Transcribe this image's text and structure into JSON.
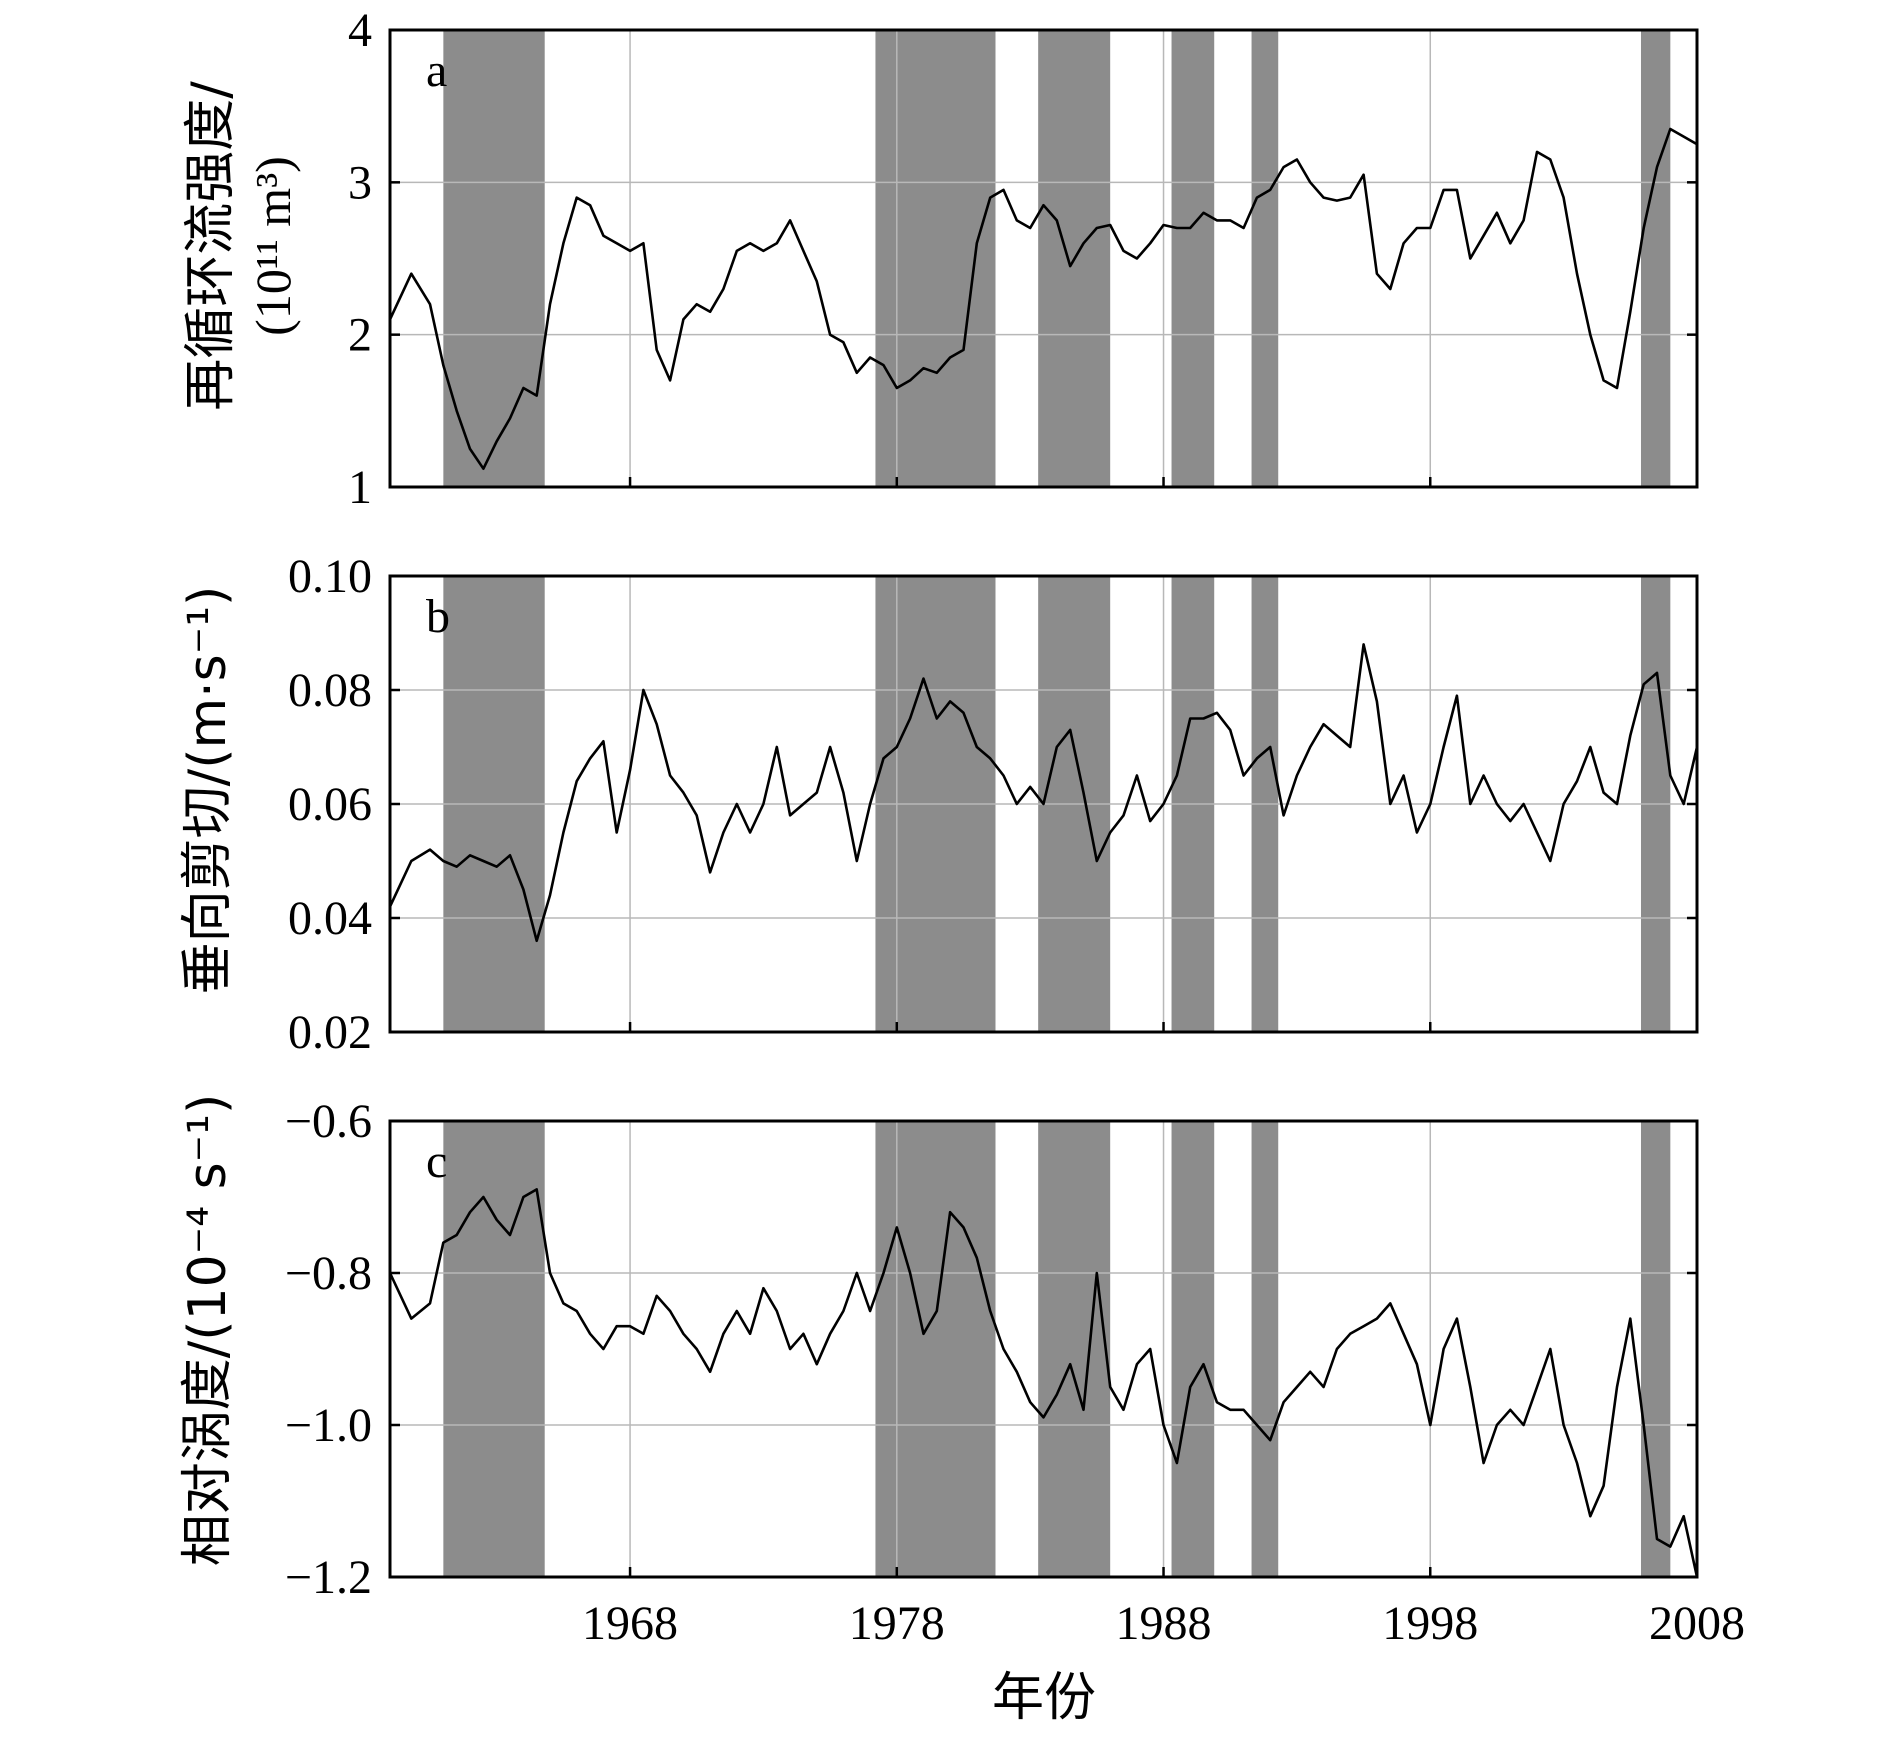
{
  "xlabel": "年份",
  "shaded_periods": [
    [
      1961.0,
      1964.8
    ],
    [
      1977.2,
      1981.7
    ],
    [
      1983.3,
      1986.0
    ],
    [
      1988.3,
      1989.9
    ],
    [
      1991.3,
      1992.3
    ],
    [
      2005.9,
      2007.0
    ]
  ],
  "chart_data": [
    {
      "type": "line",
      "panel": "a",
      "ylabel": "再循环流强度/",
      "yunit": "(10¹¹ m³)",
      "ylim": [
        1,
        4
      ],
      "yticks": [
        "1",
        "2",
        "3",
        "4"
      ],
      "xlim": [
        1959,
        2008
      ],
      "xticks": [
        "1968",
        "1978",
        "1988",
        "1998",
        "2008"
      ],
      "grid": true,
      "x": [
        1959.0,
        1959.8,
        1960.5,
        1961.0,
        1961.5,
        1962.0,
        1962.5,
        1963.0,
        1963.5,
        1964.0,
        1964.5,
        1965.0,
        1965.5,
        1966.0,
        1966.5,
        1967.0,
        1967.5,
        1968.0,
        1968.5,
        1969.0,
        1969.5,
        1970.0,
        1970.5,
        1971.0,
        1971.5,
        1972.0,
        1972.5,
        1973.0,
        1973.5,
        1974.0,
        1974.5,
        1975.0,
        1975.5,
        1976.0,
        1976.5,
        1977.0,
        1977.5,
        1978.0,
        1978.5,
        1979.0,
        1979.5,
        1980.0,
        1980.5,
        1981.0,
        1981.5,
        1982.0,
        1982.5,
        1983.0,
        1983.5,
        1984.0,
        1984.5,
        1985.0,
        1985.5,
        1986.0,
        1986.5,
        1987.0,
        1987.5,
        1988.0,
        1988.5,
        1989.0,
        1989.5,
        1990.0,
        1990.5,
        1991.0,
        1991.5,
        1992.0,
        1992.5,
        1993.0,
        1993.5,
        1994.0,
        1994.5,
        1995.0,
        1995.5,
        1996.0,
        1996.5,
        1997.0,
        1997.5,
        1998.0,
        1998.5,
        1999.0,
        1999.5,
        2000.0,
        2000.5,
        2001.0,
        2001.5,
        2002.0,
        2002.5,
        2003.0,
        2003.5,
        2004.0,
        2004.5,
        2005.0,
        2005.5,
        2006.0,
        2006.5,
        2007.0,
        2007.5,
        2008.0
      ],
      "y": [
        2.1,
        2.4,
        2.2,
        1.8,
        1.5,
        1.25,
        1.12,
        1.3,
        1.45,
        1.65,
        1.6,
        2.2,
        2.6,
        2.9,
        2.85,
        2.65,
        2.6,
        2.55,
        2.6,
        1.9,
        1.7,
        2.1,
        2.2,
        2.15,
        2.3,
        2.55,
        2.6,
        2.55,
        2.6,
        2.75,
        2.55,
        2.35,
        2.0,
        1.95,
        1.75,
        1.85,
        1.8,
        1.65,
        1.7,
        1.78,
        1.75,
        1.85,
        1.9,
        2.6,
        2.9,
        2.95,
        2.75,
        2.7,
        2.85,
        2.75,
        2.45,
        2.6,
        2.7,
        2.72,
        2.55,
        2.5,
        2.6,
        2.72,
        2.7,
        2.7,
        2.8,
        2.75,
        2.75,
        2.7,
        2.9,
        2.95,
        3.1,
        3.15,
        3.0,
        2.9,
        2.88,
        2.9,
        3.05,
        2.4,
        2.3,
        2.6,
        2.7,
        2.7,
        2.95,
        2.95,
        2.5,
        2.65,
        2.8,
        2.6,
        2.75,
        3.2,
        3.15,
        2.9,
        2.4,
        2.0,
        1.7,
        1.65,
        2.15,
        2.7,
        3.1,
        3.35,
        3.3,
        3.25
      ]
    },
    {
      "type": "line",
      "panel": "b",
      "ylabel": "垂向剪切/(m·s⁻¹)",
      "ylim": [
        0.02,
        0.1
      ],
      "yticks": [
        "0.02",
        "0.04",
        "0.06",
        "0.08",
        "0.10"
      ],
      "xlim": [
        1959,
        2008
      ],
      "grid": true,
      "x": [
        1959.0,
        1959.8,
        1960.5,
        1961.0,
        1961.5,
        1962.0,
        1962.5,
        1963.0,
        1963.5,
        1964.0,
        1964.5,
        1965.0,
        1965.5,
        1966.0,
        1966.5,
        1967.0,
        1967.5,
        1968.0,
        1968.5,
        1969.0,
        1969.5,
        1970.0,
        1970.5,
        1971.0,
        1971.5,
        1972.0,
        1972.5,
        1973.0,
        1973.5,
        1974.0,
        1974.5,
        1975.0,
        1975.5,
        1976.0,
        1976.5,
        1977.0,
        1977.5,
        1978.0,
        1978.5,
        1979.0,
        1979.5,
        1980.0,
        1980.5,
        1981.0,
        1981.5,
        1982.0,
        1982.5,
        1983.0,
        1983.5,
        1984.0,
        1984.5,
        1985.0,
        1985.5,
        1986.0,
        1986.5,
        1987.0,
        1987.5,
        1988.0,
        1988.5,
        1989.0,
        1989.5,
        1990.0,
        1990.5,
        1991.0,
        1991.5,
        1992.0,
        1992.5,
        1993.0,
        1993.5,
        1994.0,
        1994.5,
        1995.0,
        1995.5,
        1996.0,
        1996.5,
        1997.0,
        1997.5,
        1998.0,
        1998.5,
        1999.0,
        1999.5,
        2000.0,
        2000.5,
        2001.0,
        2001.5,
        2002.0,
        2002.5,
        2003.0,
        2003.5,
        2004.0,
        2004.5,
        2005.0,
        2005.5,
        2006.0,
        2006.5,
        2007.0,
        2007.5,
        2008.0
      ],
      "y": [
        0.042,
        0.05,
        0.052,
        0.05,
        0.049,
        0.051,
        0.05,
        0.049,
        0.051,
        0.045,
        0.036,
        0.044,
        0.055,
        0.064,
        0.068,
        0.071,
        0.055,
        0.066,
        0.08,
        0.074,
        0.065,
        0.062,
        0.058,
        0.048,
        0.055,
        0.06,
        0.055,
        0.06,
        0.07,
        0.058,
        0.06,
        0.062,
        0.07,
        0.062,
        0.05,
        0.06,
        0.068,
        0.07,
        0.075,
        0.082,
        0.075,
        0.078,
        0.076,
        0.07,
        0.068,
        0.065,
        0.06,
        0.063,
        0.06,
        0.07,
        0.073,
        0.062,
        0.05,
        0.055,
        0.058,
        0.065,
        0.057,
        0.06,
        0.065,
        0.075,
        0.075,
        0.076,
        0.073,
        0.065,
        0.068,
        0.07,
        0.058,
        0.065,
        0.07,
        0.074,
        0.072,
        0.07,
        0.088,
        0.078,
        0.06,
        0.065,
        0.055,
        0.06,
        0.07,
        0.079,
        0.06,
        0.065,
        0.06,
        0.057,
        0.06,
        0.055,
        0.05,
        0.06,
        0.064,
        0.07,
        0.062,
        0.06,
        0.072,
        0.081,
        0.083,
        0.065,
        0.06,
        0.07
      ]
    },
    {
      "type": "line",
      "panel": "c",
      "ylabel": "相对涡度/(10⁻⁴ s⁻¹)",
      "ylim": [
        -1.2,
        -0.6
      ],
      "yticks": [
        "−1.2",
        "−1.0",
        "−0.8",
        "−0.6"
      ],
      "xlim": [
        1959,
        2008
      ],
      "grid": true,
      "x": [
        1959.0,
        1959.8,
        1960.5,
        1961.0,
        1961.5,
        1962.0,
        1962.5,
        1963.0,
        1963.5,
        1964.0,
        1964.5,
        1965.0,
        1965.5,
        1966.0,
        1966.5,
        1967.0,
        1967.5,
        1968.0,
        1968.5,
        1969.0,
        1969.5,
        1970.0,
        1970.5,
        1971.0,
        1971.5,
        1972.0,
        1972.5,
        1973.0,
        1973.5,
        1974.0,
        1974.5,
        1975.0,
        1975.5,
        1976.0,
        1976.5,
        1977.0,
        1977.5,
        1978.0,
        1978.5,
        1979.0,
        1979.5,
        1980.0,
        1980.5,
        1981.0,
        1981.5,
        1982.0,
        1982.5,
        1983.0,
        1983.5,
        1984.0,
        1984.5,
        1985.0,
        1985.5,
        1986.0,
        1986.5,
        1987.0,
        1987.5,
        1988.0,
        1988.5,
        1989.0,
        1989.5,
        1990.0,
        1990.5,
        1991.0,
        1991.5,
        1992.0,
        1992.5,
        1993.0,
        1993.5,
        1994.0,
        1994.5,
        1995.0,
        1995.5,
        1996.0,
        1996.5,
        1997.0,
        1997.5,
        1998.0,
        1998.5,
        1999.0,
        1999.5,
        2000.0,
        2000.5,
        2001.0,
        2001.5,
        2002.0,
        2002.5,
        2003.0,
        2003.5,
        2004.0,
        2004.5,
        2005.0,
        2005.5,
        2006.0,
        2006.5,
        2007.0,
        2007.5,
        2008.0
      ],
      "y": [
        -0.8,
        -0.86,
        -0.84,
        -0.76,
        -0.75,
        -0.72,
        -0.7,
        -0.73,
        -0.75,
        -0.7,
        -0.69,
        -0.8,
        -0.84,
        -0.85,
        -0.88,
        -0.9,
        -0.87,
        -0.87,
        -0.88,
        -0.83,
        -0.85,
        -0.88,
        -0.9,
        -0.93,
        -0.88,
        -0.85,
        -0.88,
        -0.82,
        -0.85,
        -0.9,
        -0.88,
        -0.92,
        -0.88,
        -0.85,
        -0.8,
        -0.85,
        -0.8,
        -0.74,
        -0.8,
        -0.88,
        -0.85,
        -0.72,
        -0.74,
        -0.78,
        -0.85,
        -0.9,
        -0.93,
        -0.97,
        -0.99,
        -0.96,
        -0.92,
        -0.98,
        -0.8,
        -0.95,
        -0.98,
        -0.92,
        -0.9,
        -1.0,
        -1.05,
        -0.95,
        -0.92,
        -0.97,
        -0.98,
        -0.98,
        -1.0,
        -1.02,
        -0.97,
        -0.95,
        -0.93,
        -0.95,
        -0.9,
        -0.88,
        -0.87,
        -0.86,
        -0.84,
        -0.88,
        -0.92,
        -1.0,
        -0.9,
        -0.86,
        -0.95,
        -1.05,
        -1.0,
        -0.98,
        -1.0,
        -0.95,
        -0.9,
        -1.0,
        -1.05,
        -1.12,
        -1.08,
        -0.95,
        -0.86,
        -1.0,
        -1.15,
        -1.16,
        -1.12,
        -1.2
      ]
    }
  ]
}
